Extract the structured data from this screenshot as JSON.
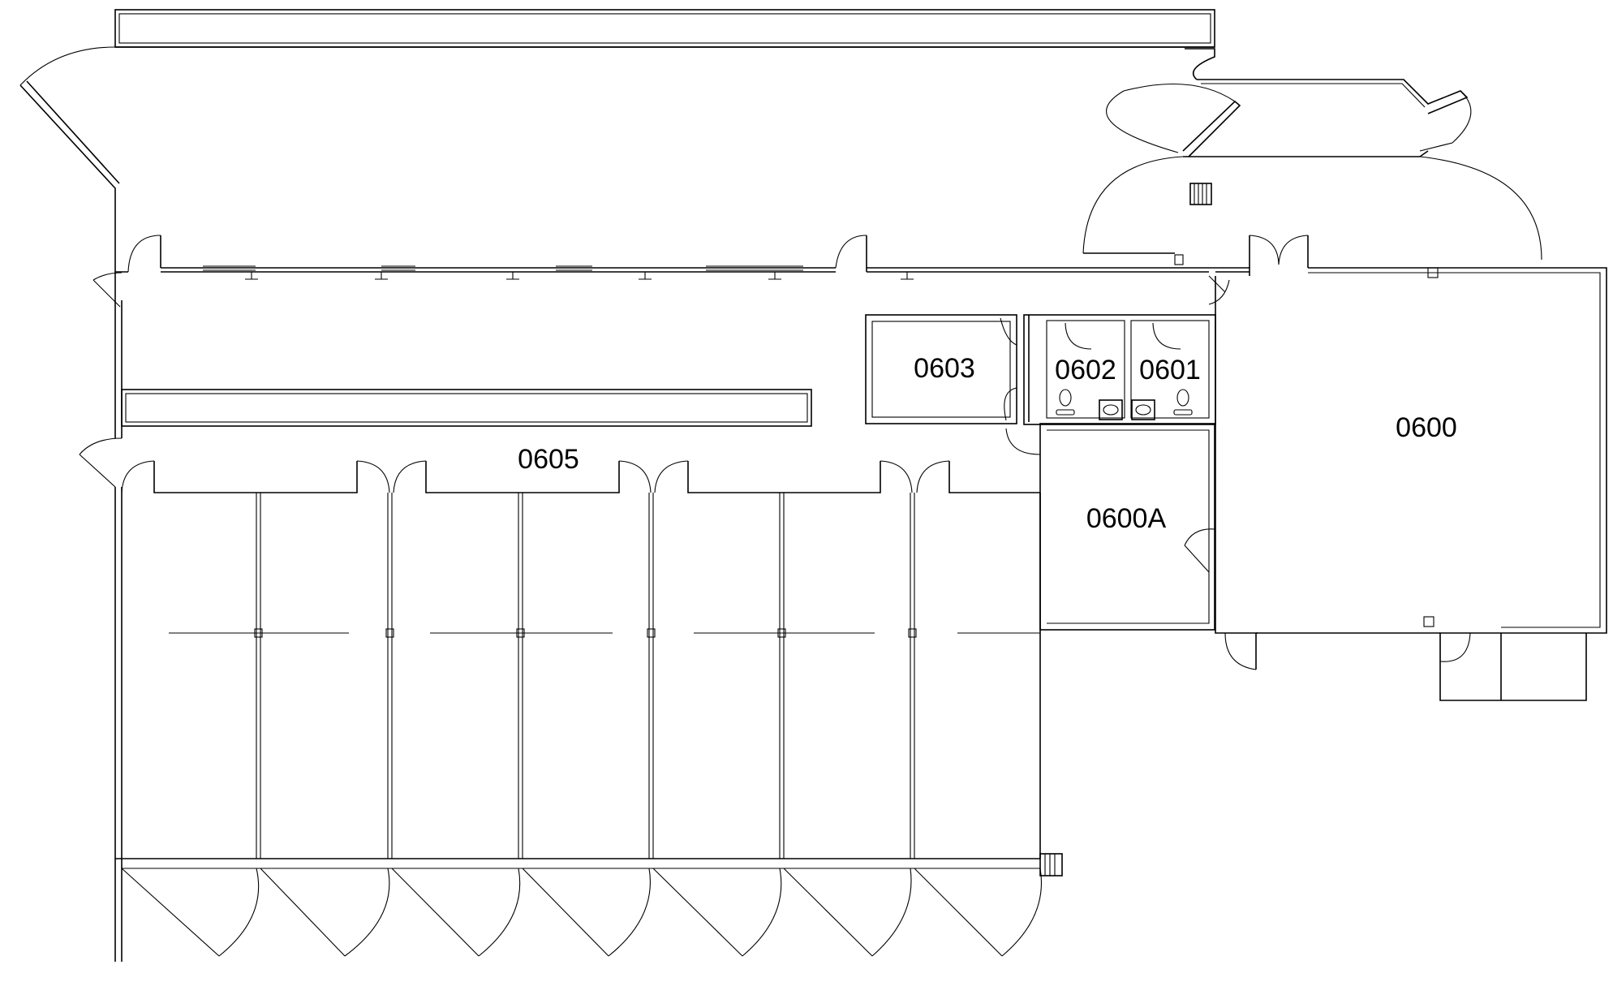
{
  "plan": {
    "rooms": [
      {
        "id": "0600",
        "label": "0600"
      },
      {
        "id": "0600A",
        "label": "0600A"
      },
      {
        "id": "0601",
        "label": "0601"
      },
      {
        "id": "0602",
        "label": "0602"
      },
      {
        "id": "0603",
        "label": "0603"
      },
      {
        "id": "0605",
        "label": "0605"
      }
    ]
  }
}
